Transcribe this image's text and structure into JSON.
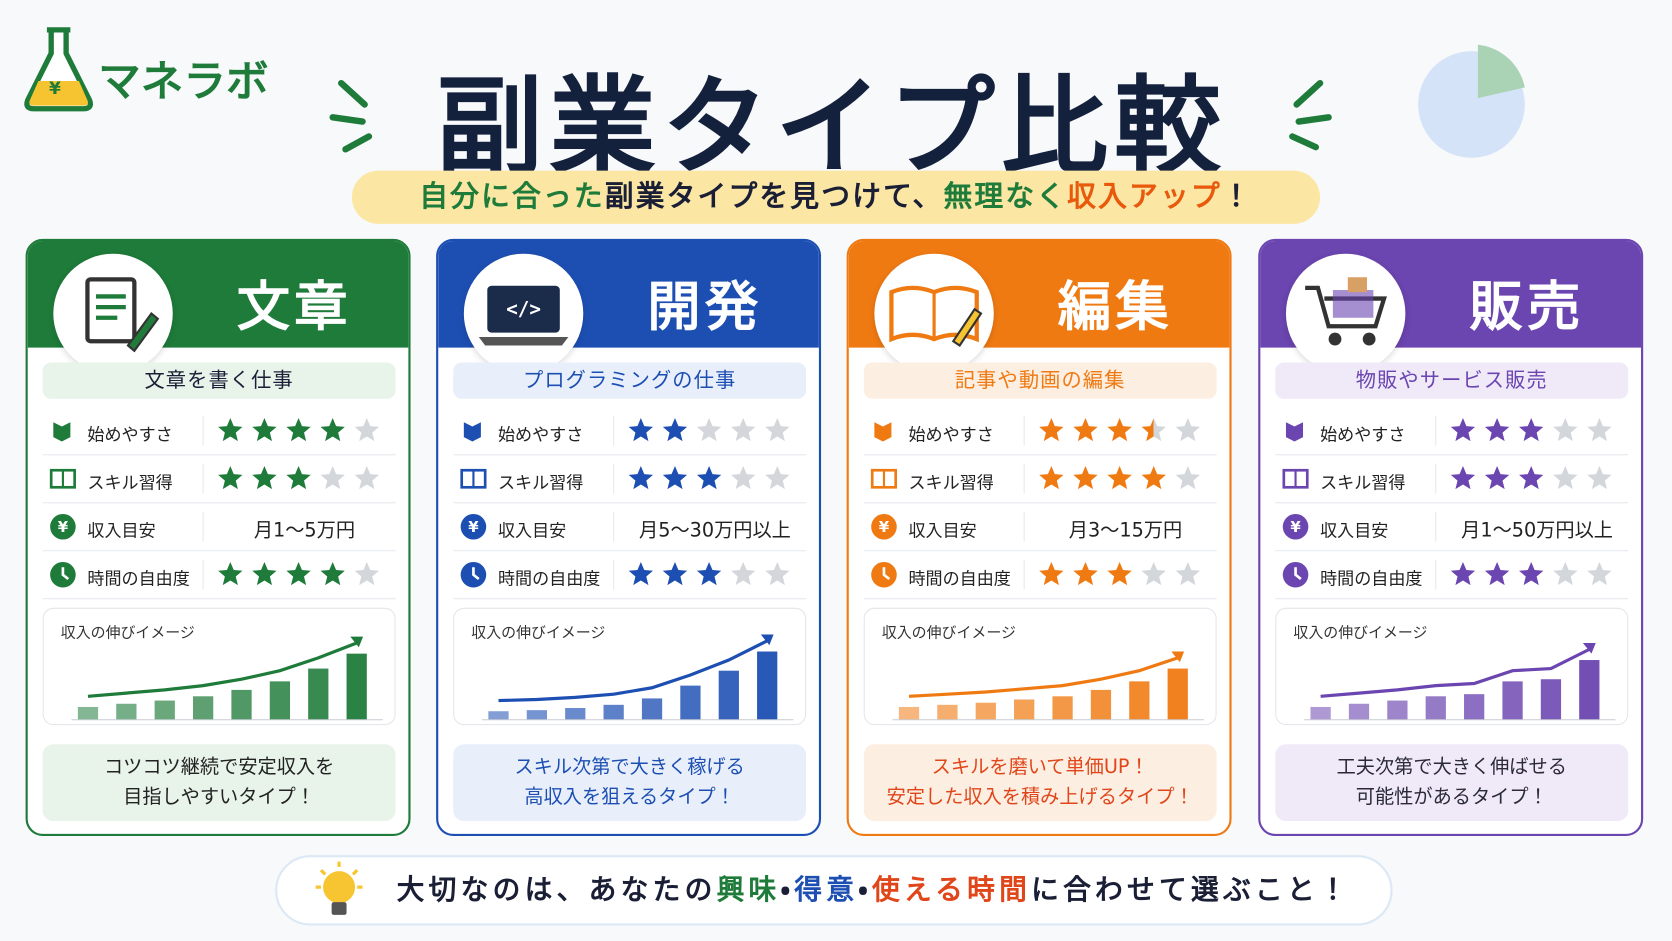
{
  "header": {
    "logo_text": "マネラボ",
    "logo_symbol": "¥",
    "title": "副業タイプ比較",
    "subtitle": [
      {
        "text": "自分に合った",
        "color": "#1e7b3a"
      },
      {
        "text": "副業タイプを見つけて、",
        "color": "#1a1f36"
      },
      {
        "text": "無理なく",
        "color": "#1e7b3a"
      },
      {
        "text": "収入アップ",
        "color": "#e8590c"
      },
      {
        "text": "！",
        "color": "#1a1f36"
      }
    ]
  },
  "rating_scale": 5,
  "cards": [
    {
      "title": "文章",
      "subtitle": "文章を書く仕事",
      "color": "#1e7b3a",
      "light": "#e8f3ea",
      "msg_color": "#222222",
      "rows": [
        {
          "label": "始めやすさ",
          "rating": 4
        },
        {
          "label": "スキル習得",
          "rating": 3
        },
        {
          "label": "収入目安",
          "text": "月1～5万円"
        },
        {
          "label": "時間の自由度",
          "rating": 4
        }
      ],
      "chart_label": "収入の伸びイメージ",
      "growth": [
        12,
        15,
        18,
        22,
        28,
        36,
        48,
        62
      ],
      "message": [
        "コツコツ継続で安定収入を",
        "目指しやすいタイプ！"
      ]
    },
    {
      "title": "開発",
      "subtitle": "プログラミングの仕事",
      "color": "#1d4fb3",
      "light": "#e8effb",
      "msg_color": "#1d4fb3",
      "rows": [
        {
          "label": "始めやすさ",
          "rating": 2
        },
        {
          "label": "スキル習得",
          "rating": 3
        },
        {
          "label": "収入目安",
          "text": "月5～30万円以上"
        },
        {
          "label": "時間の自由度",
          "rating": 3
        }
      ],
      "chart_label": "収入の伸びイメージ",
      "growth": [
        8,
        9,
        11,
        14,
        20,
        32,
        46,
        64
      ],
      "message": [
        "スキル次第で大きく稼げる",
        "高収入を狙えるタイプ！"
      ]
    },
    {
      "title": "編集",
      "subtitle": "記事や動画の編集",
      "color": "#f07a12",
      "light": "#fdeee2",
      "msg_color": "#e0461a",
      "rows": [
        {
          "label": "始めやすさ",
          "rating": 3.5
        },
        {
          "label": "スキル習得",
          "rating": 4
        },
        {
          "label": "収入目安",
          "text": "月3～15万円"
        },
        {
          "label": "時間の自由度",
          "rating": 3
        }
      ],
      "chart_label": "収入の伸びイメージ",
      "growth": [
        12,
        14,
        16,
        19,
        22,
        28,
        36,
        48
      ],
      "message": [
        "スキルを磨いて単価UP！",
        "安定した収入を積み上げるタイプ！"
      ]
    },
    {
      "title": "販売",
      "subtitle": "物販やサービス販売",
      "color": "#6b45b0",
      "light": "#efe9f8",
      "msg_color": "#2a2a3a",
      "rows": [
        {
          "label": "始めやすさ",
          "rating": 3
        },
        {
          "label": "スキル習得",
          "rating": 3
        },
        {
          "label": "収入目安",
          "text": "月1～50万円以上"
        },
        {
          "label": "時間の自由度",
          "rating": 3
        }
      ],
      "chart_label": "収入の伸びイメージ",
      "growth": [
        12,
        15,
        18,
        22,
        24,
        36,
        38,
        56
      ],
      "message": [
        "工夫次第で大きく伸ばせる",
        "可能性があるタイプ！"
      ]
    }
  ],
  "footer": [
    {
      "text": "大切なのは、あなたの",
      "color": "#1a1f36"
    },
    {
      "text": "興味",
      "color": "#1e7b3a"
    },
    {
      "text": "・",
      "color": "#1a1f36"
    },
    {
      "text": "得意",
      "color": "#1d4fb3"
    },
    {
      "text": "・",
      "color": "#1a1f36"
    },
    {
      "text": "使える時間",
      "color": "#e0461a"
    },
    {
      "text": "に合わせて選ぶこと！",
      "color": "#1a1f36"
    }
  ]
}
